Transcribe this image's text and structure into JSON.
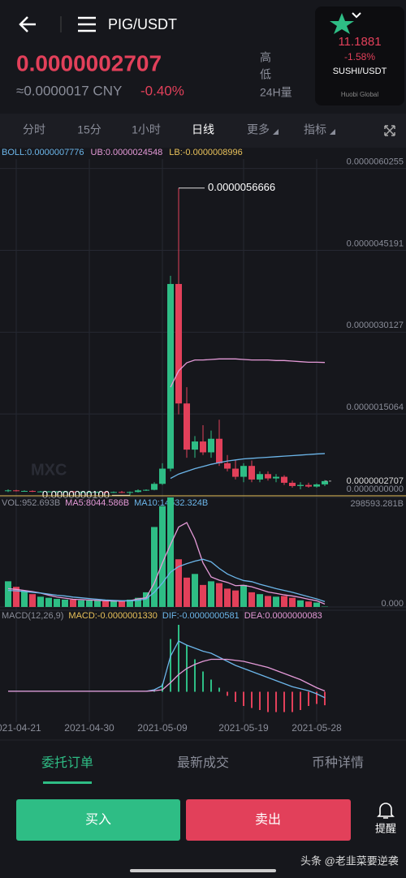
{
  "header": {
    "title": "PIG/USDT",
    "price": "0.0000002707",
    "cny": "≈0.0000017 CNY",
    "change": "-0.40%",
    "stats": [
      "高",
      "低",
      "24H量"
    ]
  },
  "popup": {
    "price": "11.1881",
    "change": "-1.58%",
    "pair": "SUSHI/USDT",
    "brand": "Huobi Global"
  },
  "tabs": [
    "分时",
    "15分",
    "1小时",
    "日线",
    "更多",
    "指标"
  ],
  "chart_data": {
    "type": "candlestick",
    "categories": [
      null,
      "2021-04-21",
      null,
      null,
      null,
      null,
      null,
      null,
      null,
      null,
      "2021-04-30",
      null,
      null,
      null,
      null,
      null,
      null,
      null,
      null,
      "2021-05-09",
      null,
      null,
      null,
      null,
      null,
      null,
      null,
      null,
      null,
      "2021-05-19",
      null,
      null,
      null,
      null,
      null,
      null,
      null,
      null,
      "2021-05-28",
      null
    ],
    "open": [
      9e-08,
      1e-07,
      9e-08,
      9e-08,
      8e-08,
      8e-08,
      8e-08,
      8e-08,
      8e-08,
      7e-08,
      7e-08,
      7e-08,
      7e-08,
      6e-08,
      7e-08,
      6e-08,
      7e-08,
      1e-07,
      1.1e-07,
      2.2e-07,
      5e-07,
      3.9e-06,
      1.7e-06,
      8.5e-07,
      1e-06,
      8e-07,
      1.05e-06,
      6e-07,
      5e-07,
      3.5e-07,
      5.5e-07,
      3e-07,
      4e-07,
      3.2e-07,
      3.5e-07,
      2.4e-07,
      1.8e-07,
      2e-07,
      1.7e-07,
      2.1e-07
    ],
    "high": [
      1.2e-07,
      1.1e-07,
      1e-07,
      1e-07,
      9e-08,
      9e-08,
      9e-08,
      9e-08,
      9e-08,
      8e-08,
      8e-08,
      8e-08,
      8e-08,
      8e-08,
      9e-08,
      8e-08,
      1.2e-07,
      1.2e-07,
      2.5e-07,
      6e-07,
      4.05e-06,
      5.6666e-06,
      2e-06,
      1.1e-06,
      1.3e-06,
      1.2e-06,
      1.4e-06,
      7.5e-07,
      6.5e-07,
      6e-07,
      6.5e-07,
      4.5e-07,
      4.5e-07,
      4e-07,
      3.8e-07,
      2.8e-07,
      2.5e-07,
      2.4e-07,
      2.3e-07,
      2.9e-07
    ],
    "low": [
      7e-08,
      8e-08,
      8e-08,
      7e-08,
      7e-08,
      7e-08,
      7e-08,
      7e-08,
      6e-08,
      6e-08,
      6e-08,
      6e-08,
      5e-08,
      5e-08,
      5e-08,
      1e-08,
      6e-08,
      9e-08,
      1e-07,
      2e-07,
      4.5e-07,
      1.5e-06,
      7e-07,
      7e-07,
      7.5e-07,
      7e-07,
      5.5e-07,
      4.5e-07,
      3e-07,
      2.5e-07,
      2.5e-07,
      2.5e-07,
      2.8e-07,
      2.5e-07,
      2e-07,
      1.5e-07,
      1.2e-07,
      1.5e-07,
      1.5e-07,
      1.8e-07
    ],
    "close": [
      1e-07,
      9e-08,
      9e-08,
      8e-08,
      8e-08,
      8e-08,
      8e-08,
      8e-08,
      7e-08,
      7e-08,
      7e-08,
      7e-08,
      6e-08,
      7e-08,
      6e-08,
      7e-08,
      1e-07,
      1.1e-07,
      2.2e-07,
      5e-07,
      3.9e-06,
      1.7e-06,
      8.5e-07,
      1e-06,
      8e-07,
      1.05e-06,
      6e-07,
      5e-07,
      3.5e-07,
      5.5e-07,
      3e-07,
      4e-07,
      3.2e-07,
      3.5e-07,
      2.4e-07,
      1.8e-07,
      2e-07,
      1.7e-07,
      2.1e-07,
      2.707e-07
    ],
    "up_color": "#2ebd85",
    "down_color": "#e2405a",
    "ylim": [
      0,
      6.2e-06
    ],
    "yticks": [
      {
        "value": 6.0255e-06,
        "label": "0.0000060255"
      },
      {
        "value": 4.5191e-06,
        "label": "0.0000045191"
      },
      {
        "value": 3.0127e-06,
        "label": "0.0000030127"
      },
      {
        "value": 1.5064e-06,
        "label": "0.0000015064"
      },
      {
        "value": 0,
        "label": "0.0000000000"
      }
    ],
    "grid": true,
    "high_label": "0.0000056666",
    "low_label": "0.0000000100",
    "watermark": "MXC",
    "boll_labels": [
      "BOLL:0.0000007776",
      "UB:0.0000024548",
      "LB:-0.0000008996"
    ],
    "boll_lines": [
      {
        "color": "#e59ad8",
        "values": [
          null,
          null,
          null,
          null,
          null,
          null,
          null,
          null,
          null,
          null,
          null,
          null,
          null,
          null,
          null,
          null,
          null,
          null,
          null,
          null,
          2e-06,
          2.3e-06,
          2.45e-06,
          2.5e-06,
          2.5e-06,
          2.51e-06,
          2.52e-06,
          2.52e-06,
          2.52e-06,
          2.51e-06,
          2.5e-06,
          2.5e-06,
          2.5e-06,
          2.49e-06,
          2.49e-06,
          2.48e-06,
          2.47e-06,
          2.46e-06,
          2.46e-06,
          2.4548e-06
        ]
      },
      {
        "color": "#6cb6ea",
        "values": [
          null,
          null,
          null,
          null,
          null,
          null,
          null,
          null,
          null,
          null,
          null,
          null,
          null,
          null,
          null,
          null,
          null,
          null,
          null,
          null,
          3.2e-07,
          4e-07,
          4.5e-07,
          5e-07,
          5.4e-07,
          5.8e-07,
          6.1e-07,
          6.4e-07,
          6.6e-07,
          6.8e-07,
          6.9e-07,
          7e-07,
          7.1e-07,
          7.2e-07,
          7.3e-07,
          7.4e-07,
          7.5e-07,
          7.6e-07,
          7.7e-07,
          7.776e-07
        ]
      }
    ],
    "volume": {
      "labels": [
        "VOL:952.693B",
        "MA5:8044.586B",
        "MA10:14632.324B"
      ],
      "values": [
        70000,
        55000,
        45000,
        35000,
        28000,
        25000,
        22000,
        20000,
        20000,
        18000,
        18000,
        18000,
        16000,
        16000,
        16000,
        20000,
        25000,
        40000,
        218000,
        275000,
        298593.281,
        130000,
        80000,
        90000,
        60000,
        70000,
        65000,
        50000,
        45000,
        60000,
        40000,
        35000,
        30000,
        28000,
        30000,
        25000,
        18000,
        15000,
        12000,
        952.693
      ],
      "ylim": [
        0,
        298593.281
      ],
      "yticks": [
        {
          "value": 298593.281,
          "label": "298593.281B"
        },
        {
          "value": 0,
          "label": "0.000"
        }
      ],
      "lines": [
        {
          "color": "#e59ad8",
          "values": [
            50000,
            48000,
            45000,
            42000,
            38000,
            32000,
            27000,
            24000,
            21000,
            20000,
            19000,
            18000,
            17000,
            16000,
            16000,
            17000,
            22000,
            25000,
            65000,
            120000,
            170000,
            218000,
            230000,
            185000,
            120000,
            82000,
            73000,
            67000,
            58000,
            59000,
            55000,
            48000,
            41000,
            37000,
            33000,
            30000,
            26000,
            21000,
            17000,
            8044.586
          ]
        },
        {
          "color": "#6cb6ea",
          "values": [
            45000,
            44000,
            42000,
            40000,
            38000,
            35000,
            32000,
            30000,
            27000,
            25000,
            23000,
            21000,
            19000,
            18000,
            17000,
            17000,
            18000,
            22000,
            40000,
            65000,
            95000,
            110000,
            118000,
            125000,
            130000,
            123000,
            105000,
            90000,
            80000,
            72000,
            69000,
            62000,
            56000,
            50000,
            45000,
            40000,
            34000,
            28000,
            22000,
            14632.324
          ]
        }
      ]
    },
    "macd": {
      "labels": [
        "MACD(12,26,9)",
        "MACD:-0.0000001330",
        "DIF:-0.0000000581",
        "DEA:0.0000000083"
      ],
      "ylim": [
        -3e-07,
        7e-07
      ],
      "hist": [
        0,
        0,
        0,
        0,
        0,
        0,
        0,
        0,
        0,
        0,
        0,
        0,
        0,
        0,
        0,
        0,
        0,
        0,
        2e-08,
        8e-08,
        5.2e-07,
        6.6e-07,
        4.6e-07,
        3.2e-07,
        2e-07,
        1.2e-07,
        4e-08,
        -4e-08,
        -1e-07,
        -1.4e-07,
        -1.6e-07,
        -1.8e-07,
        -2e-07,
        -2e-07,
        -2e-07,
        -2e-07,
        -1.8e-07,
        -1.4e-07,
        -1.2e-07,
        -1.33e-07
      ],
      "lines": [
        {
          "color": "#6cb6ea",
          "values": [
            5e-09,
            5e-09,
            5e-09,
            5e-09,
            5e-09,
            5e-09,
            5e-09,
            5e-09,
            5e-09,
            5e-09,
            5e-09,
            5e-09,
            5e-09,
            5e-09,
            5e-09,
            5e-09,
            5e-09,
            5e-09,
            2e-08,
            6e-08,
            3.5e-07,
            5e-07,
            4.6e-07,
            4.3e-07,
            4e-07,
            3.8e-07,
            3.4e-07,
            3e-07,
            2.6e-07,
            2.3e-07,
            2e-07,
            1.7e-07,
            1.4e-07,
            1.1e-07,
            8e-08,
            5e-08,
            3e-08,
            1e-08,
            -2e-08,
            -5.81e-08
          ]
        },
        {
          "color": "#e59ad8",
          "values": [
            5e-09,
            5e-09,
            5e-09,
            5e-09,
            5e-09,
            5e-09,
            5e-09,
            5e-09,
            5e-09,
            5e-09,
            5e-09,
            5e-09,
            5e-09,
            5e-09,
            5e-09,
            5e-09,
            5e-09,
            5e-09,
            1e-08,
            2e-08,
            9e-08,
            1.7e-07,
            2.3e-07,
            2.7e-07,
            3e-07,
            3.2e-07,
            3.2e-07,
            3.2e-07,
            3.1e-07,
            3e-07,
            2.8e-07,
            2.6e-07,
            2.4e-07,
            2.1e-07,
            1.8e-07,
            1.5e-07,
            1.2e-07,
            8e-08,
            4e-08,
            8.3e-09
          ]
        }
      ]
    }
  },
  "bottom_tabs": [
    "委托订单",
    "最新成交",
    "币种详情"
  ],
  "buttons": {
    "buy": "买入",
    "sell": "卖出"
  },
  "alert": "提醒",
  "footer": "头条 @老韭菜要逆袭"
}
